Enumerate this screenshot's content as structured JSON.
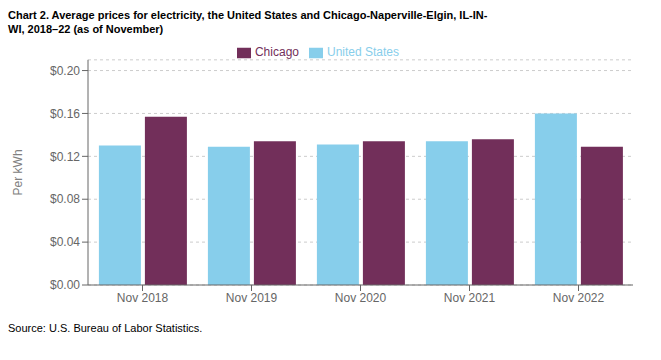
{
  "chart_data": {
    "type": "bar",
    "title": "Chart 2. Average prices for electricity, the United States and Chicago-Naperville-Elgin, IL-IN-\nWI, 2018–22 (as of November)",
    "y_label": "Per kWh",
    "annotations": [
      "Source: U.S. Bureau of Labor Statistics."
    ],
    "categories": [
      "Nov 2018",
      "Nov 2019",
      "Nov 2020",
      "Nov 2021",
      "Nov 2022"
    ],
    "series": [
      {
        "name": "United States",
        "color": "#87CEEB",
        "values": [
          0.13,
          0.129,
          0.131,
          0.134,
          0.16
        ]
      },
      {
        "name": "Chicago",
        "color": "#722F5A",
        "values": [
          0.157,
          0.134,
          0.134,
          0.136,
          0.129
        ]
      }
    ],
    "ylim": [
      0,
      0.21
    ],
    "yticks": [
      {
        "value": 0.0,
        "label": "$0.00"
      },
      {
        "value": 0.04,
        "label": "$0.04"
      },
      {
        "value": 0.08,
        "label": "$0.08"
      },
      {
        "value": 0.12,
        "label": "$0.12"
      },
      {
        "value": 0.16,
        "label": "$0.16"
      },
      {
        "value": 0.2,
        "label": "$0.20"
      }
    ],
    "grid": true,
    "legend": "top"
  }
}
